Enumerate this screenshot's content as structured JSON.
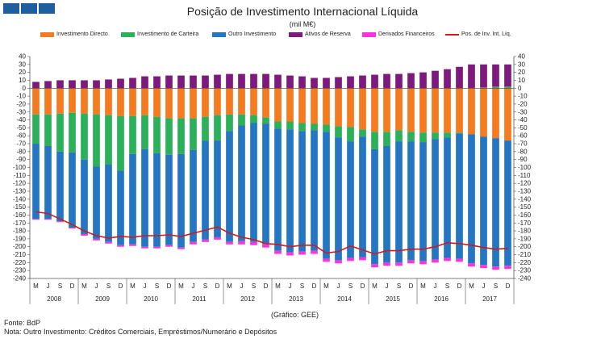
{
  "header": {
    "title": "Posição de Investimento Internacional Líquida",
    "subtitle": "(mil M€)"
  },
  "source_label": "(Gráfico: GEE)",
  "footer": {
    "source": "Fonte: BdP",
    "note": "Nota: Outro Investimento:  Créditos Comerciais, Empréstimos/Numerário  e Depósitos"
  },
  "colors": {
    "investimento_direto": "#f47b20",
    "investimento_carteira": "#2bb15a",
    "outro_investimento": "#2475c2",
    "ativos_reserva": "#7d1a7d",
    "derivados": "#ff33dd",
    "pos_liquida": "#d01a1a"
  },
  "chart_data": {
    "type": "bar",
    "stacked": true,
    "ylim": [
      -240,
      40
    ],
    "ytick_step": 10,
    "grid": false,
    "legend_position": "top",
    "legend": [
      "Investimento Directo",
      "Investimento de Carteira",
      "Outro Investimento",
      "Ativos de Reserva",
      "Derivados Financeiros",
      "Pos. de Inv. Int. Líq."
    ],
    "quarter_labels": [
      "M",
      "J",
      "S",
      "D"
    ],
    "years": [
      "2008",
      "2009",
      "2010",
      "2011",
      "2012",
      "2013",
      "2014",
      "2015",
      "2016",
      "2017"
    ],
    "categories": [
      "2008-M",
      "2008-J",
      "2008-S",
      "2008-D",
      "2009-M",
      "2009-J",
      "2009-S",
      "2009-D",
      "2010-M",
      "2010-J",
      "2010-S",
      "2010-D",
      "2011-M",
      "2011-J",
      "2011-S",
      "2011-D",
      "2012-M",
      "2012-J",
      "2012-S",
      "2012-D",
      "2013-M",
      "2013-J",
      "2013-S",
      "2013-D",
      "2014-M",
      "2014-J",
      "2014-S",
      "2014-D",
      "2015-M",
      "2015-J",
      "2015-S",
      "2015-D",
      "2016-M",
      "2016-J",
      "2016-S",
      "2016-D",
      "2017-M",
      "2017-J",
      "2017-S",
      "2017-D"
    ],
    "series": [
      {
        "name": "Investimento Directo",
        "key": "investimento_direto",
        "values": [
          -33,
          -33,
          -32,
          -31,
          -32,
          -33,
          -34,
          -35,
          -35,
          -34,
          -36,
          -38,
          -38,
          -38,
          -36,
          -34,
          -33,
          -33,
          -34,
          -37,
          -42,
          -42,
          -44,
          -45,
          -46,
          -48,
          -49,
          -52,
          -55,
          -55,
          -53,
          -55,
          -56,
          -56,
          -56,
          -56,
          -58,
          -61,
          -63,
          -66
        ]
      },
      {
        "name": "Investimento de Carteira",
        "key": "investimento_carteira",
        "values": [
          -37,
          -40,
          -48,
          -50,
          -58,
          -66,
          -62,
          -69,
          -48,
          -43,
          -46,
          -46,
          -45,
          -40,
          -30,
          -32,
          -21,
          -14,
          -10,
          -8,
          -9,
          -10,
          -10,
          -8,
          -9,
          -14,
          -18,
          -9,
          -22,
          -18,
          -14,
          -12,
          -12,
          -8,
          -6,
          -1,
          0,
          1,
          2,
          2
        ]
      },
      {
        "name": "Outro Investimento",
        "key": "outro_investimento",
        "values": [
          -95,
          -92,
          -88,
          -95,
          -94,
          -91,
          -98,
          -94,
          -114,
          -123,
          -118,
          -114,
          -118,
          -116,
          -125,
          -122,
          -140,
          -146,
          -150,
          -152,
          -154,
          -155,
          -152,
          -152,
          -160,
          -155,
          -147,
          -152,
          -145,
          -147,
          -153,
          -150,
          -150,
          -152,
          -152,
          -158,
          -163,
          -162,
          -162,
          -158
        ]
      },
      {
        "name": "Ativos de Reserva",
        "key": "ativos_reserva",
        "values": [
          8,
          9,
          10,
          10,
          10,
          10,
          11,
          12,
          13,
          15,
          15,
          16,
          16,
          16,
          16,
          17,
          18,
          18,
          18,
          18,
          17,
          16,
          15,
          13,
          13,
          14,
          15,
          16,
          17,
          18,
          18,
          19,
          20,
          22,
          24,
          27,
          30,
          29,
          28,
          28
        ]
      },
      {
        "name": "Derivados Financeiros",
        "key": "derivados",
        "values": [
          -1,
          -1,
          -1,
          -1,
          -2,
          -2,
          -2,
          -2,
          -2,
          -2,
          -2,
          -2,
          -2,
          -3,
          -3,
          -3,
          -3,
          -4,
          -4,
          -4,
          -4,
          -4,
          -4,
          -4,
          -4,
          -4,
          -4,
          -4,
          -4,
          -4,
          -4,
          -4,
          -4,
          -4,
          -4,
          -4,
          -4,
          -4,
          -4,
          -4
        ]
      }
    ],
    "line": {
      "name": "Pos. de Inv. Int. Líq.",
      "key": "pos_liquida",
      "values": [
        -156,
        -158,
        -165,
        -172,
        -180,
        -186,
        -189,
        -187,
        -188,
        -186,
        -186,
        -185,
        -187,
        -183,
        -179,
        -175,
        -183,
        -188,
        -191,
        -196,
        -197,
        -200,
        -198,
        -198,
        -208,
        -206,
        -199,
        -204,
        -209,
        -205,
        -205,
        -203,
        -203,
        -200,
        -195,
        -196,
        -198,
        -201,
        -203,
        -202
      ]
    }
  }
}
